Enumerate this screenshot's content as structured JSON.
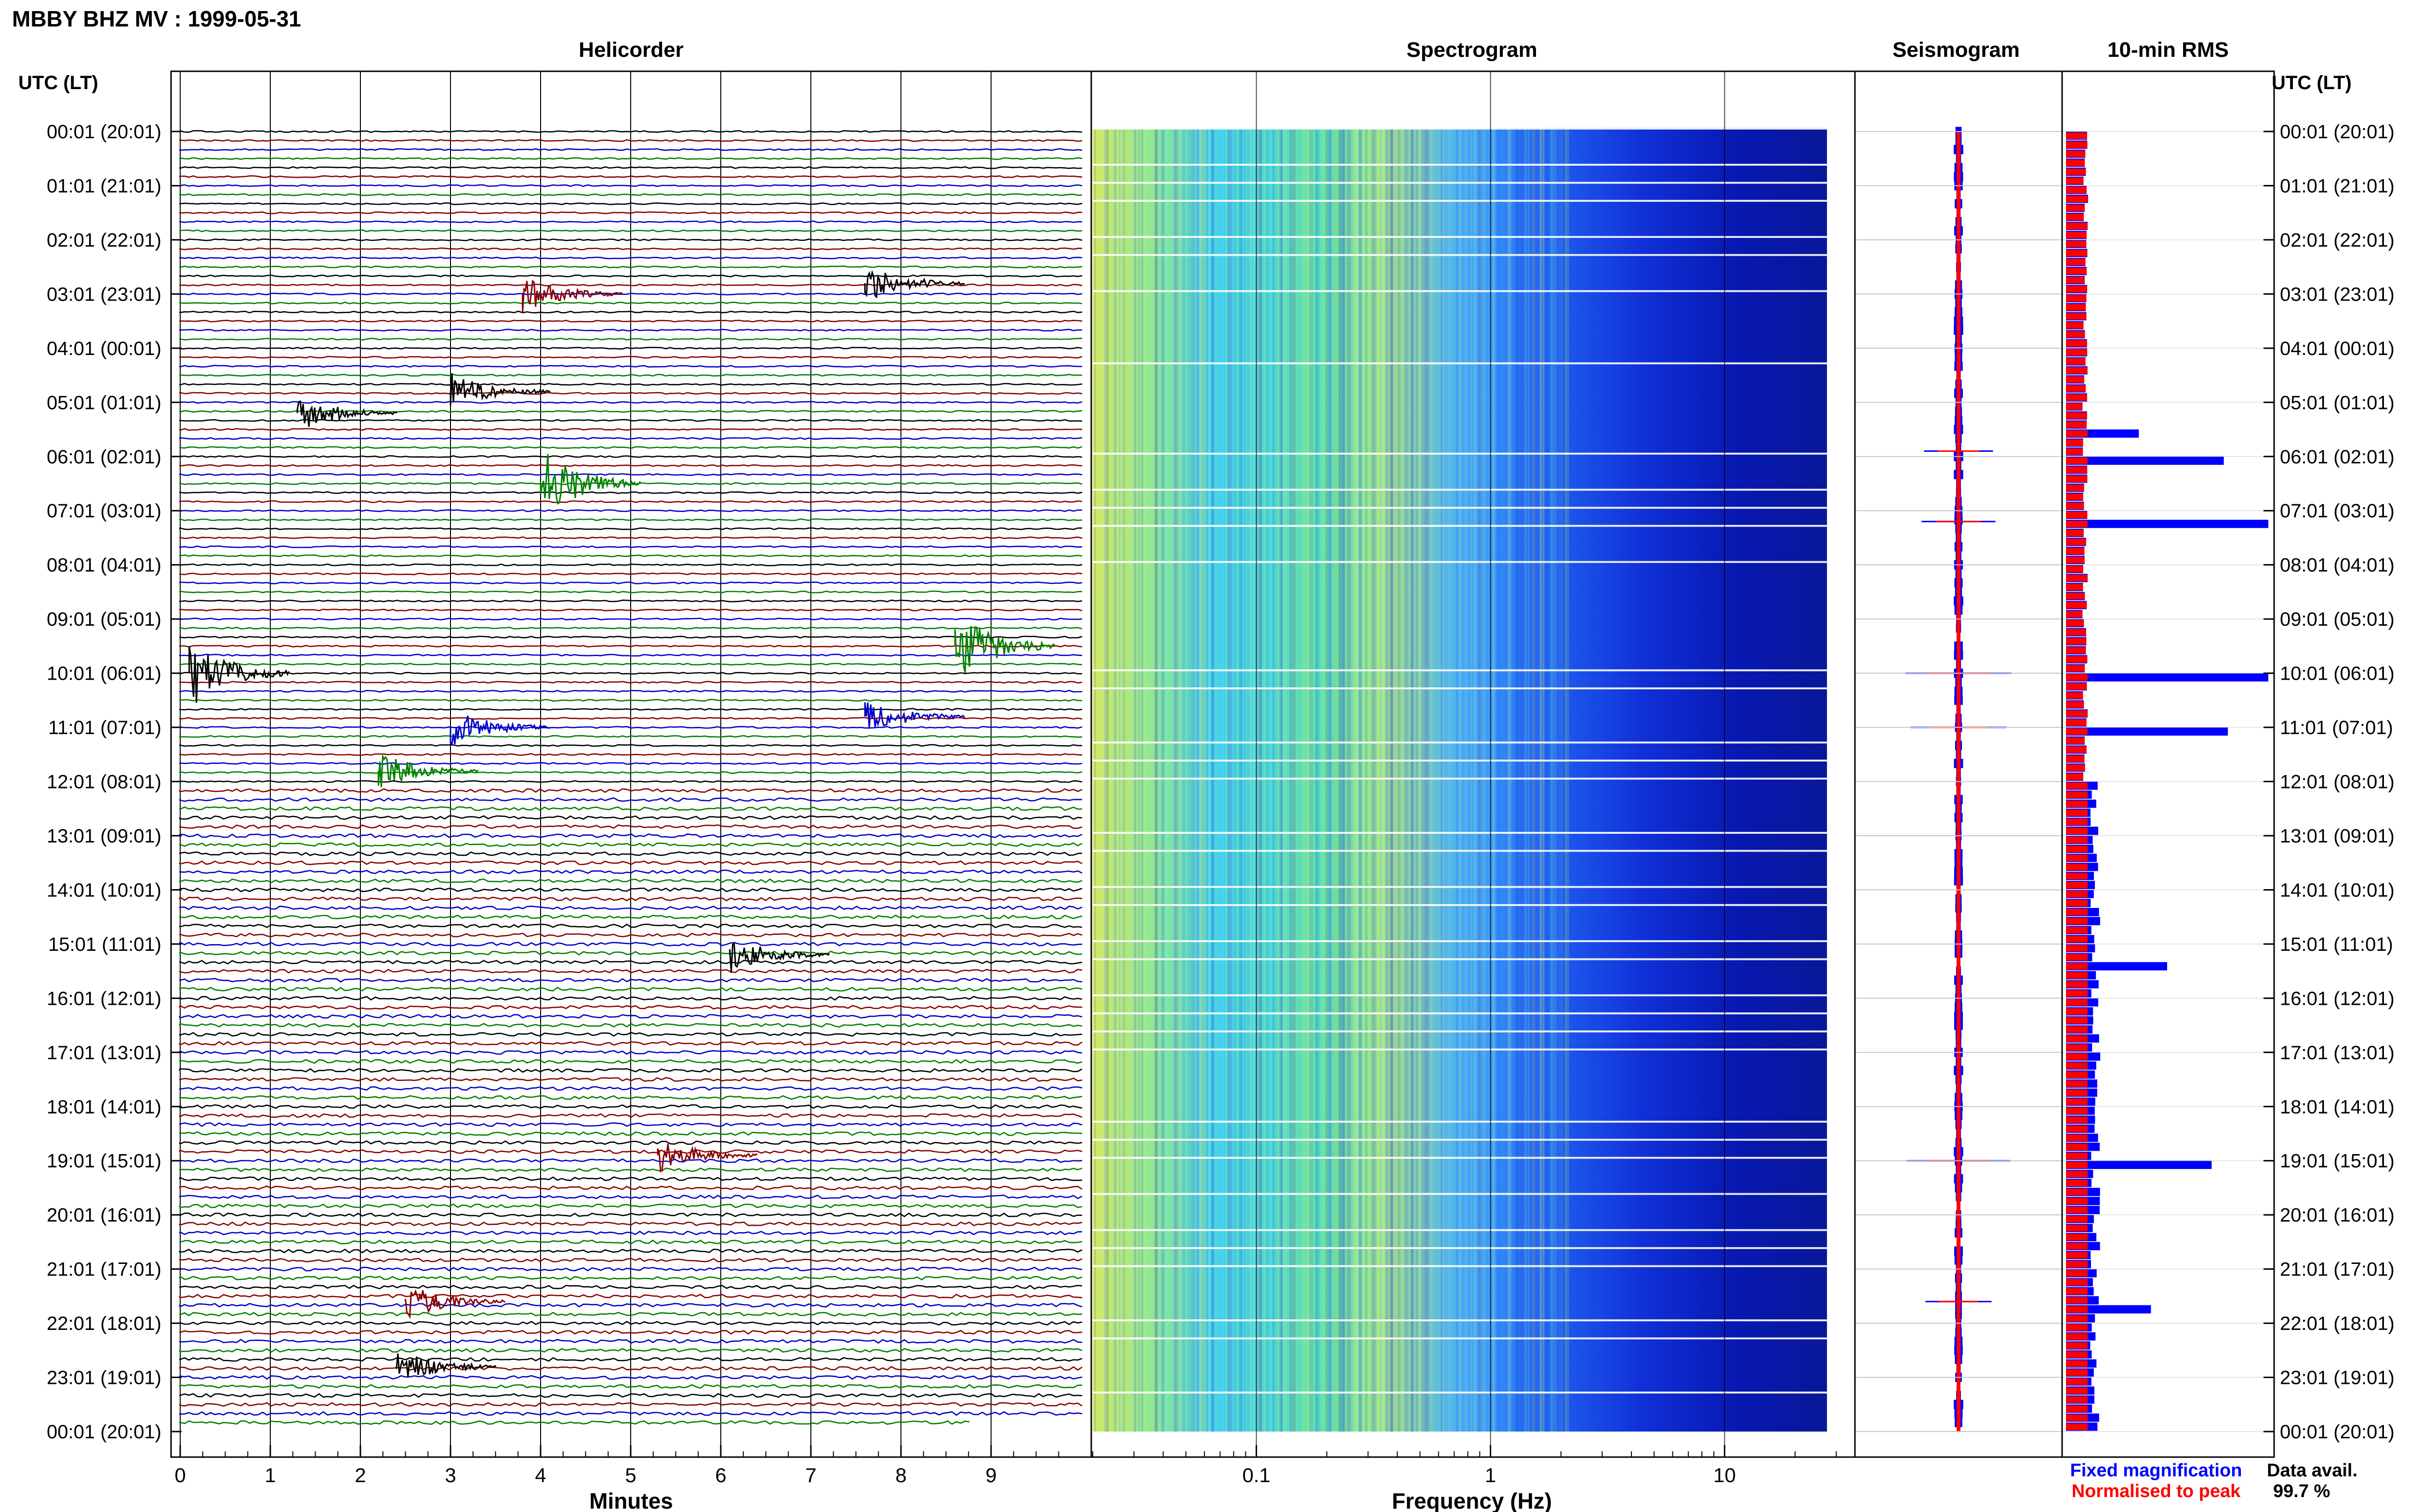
{
  "header": {
    "station_title": "MBBY BHZ MV : 1999-05-31",
    "left_axis_label": "UTC (LT)",
    "right_axis_label": "UTC (LT)",
    "data_avail_label": "Data avail.",
    "data_avail_value": "99.7 %"
  },
  "panels": {
    "helicorder_title": "Helicorder",
    "spectrogram_title": "Spectrogram",
    "seismogram_title": "Seismogram",
    "rms_title": "10-min RMS"
  },
  "legend": {
    "fixed_label": "Fixed magnification",
    "normalised_label": "Normalised to peak",
    "fixed_color": "#0000ff",
    "normalised_color": "#ff0000"
  },
  "chart_data": [
    {
      "type": "line",
      "name": "helicorder",
      "title": "Helicorder",
      "xlabel": "Minutes",
      "xlim": [
        0,
        10
      ],
      "x_ticks": [
        "0",
        "1",
        "2",
        "3",
        "4",
        "5",
        "6",
        "7",
        "8",
        "9"
      ],
      "y_tick_labels": [
        "00:01 (20:01)",
        "01:01 (21:01)",
        "02:01 (22:01)",
        "03:01 (23:01)",
        "04:01 (00:01)",
        "05:01 (01:01)",
        "06:01 (02:01)",
        "07:01 (03:01)",
        "08:01 (04:01)",
        "09:01 (05:01)",
        "10:01 (06:01)",
        "11:01 (07:01)",
        "12:01 (08:01)",
        "13:01 (09:01)",
        "14:01 (10:01)",
        "15:01 (11:01)",
        "16:01 (12:01)",
        "17:01 (13:01)",
        "18:01 (14:01)",
        "19:01 (15:01)",
        "20:01 (16:01)",
        "21:01 (17:01)",
        "22:01 (18:01)",
        "23:01 (19:01)",
        "00:01 (20:01)"
      ],
      "trace_colors": [
        "#000000",
        "#8b0000",
        "#0000cc",
        "#008000"
      ],
      "rows_per_hour": 6,
      "events": [
        {
          "hour": 5.2,
          "minute": 1.3,
          "color": "#000000"
        },
        {
          "hour": 4.8,
          "minute": 3.0,
          "color": "#000000"
        },
        {
          "hour": 6.5,
          "minute": 4.0,
          "color": "#008000"
        },
        {
          "hour": 9.5,
          "minute": 8.6,
          "color": "#008000"
        },
        {
          "hour": 10.0,
          "minute": 0.1,
          "color": "#000000"
        },
        {
          "hour": 11.0,
          "minute": 3.0,
          "color": "#0000cc"
        },
        {
          "hour": 10.8,
          "minute": 7.6,
          "color": "#0000cc"
        },
        {
          "hour": 11.8,
          "minute": 2.2,
          "color": "#008000"
        },
        {
          "hour": 15.2,
          "minute": 6.1,
          "color": "#000000"
        },
        {
          "hour": 18.9,
          "minute": 5.3,
          "color": "#8b0000"
        },
        {
          "hour": 2.8,
          "minute": 7.6,
          "color": "#000000"
        },
        {
          "hour": 3.0,
          "minute": 3.8,
          "color": "#8b0000"
        },
        {
          "hour": 21.6,
          "minute": 2.5,
          "color": "#8b0000"
        },
        {
          "hour": 22.8,
          "minute": 2.4,
          "color": "#000000"
        }
      ]
    },
    {
      "type": "heatmap",
      "name": "spectrogram",
      "title": "Spectrogram",
      "xlabel": "Frequency (Hz)",
      "x_scale": "log",
      "xlim": [
        0.02,
        40
      ],
      "x_ticks": [
        "0.1",
        "1",
        "10"
      ],
      "colormap": [
        "#000080",
        "#0000ff",
        "#0080ff",
        "#00d0ff",
        "#80ff80",
        "#ffff00"
      ]
    },
    {
      "type": "line",
      "name": "seismogram",
      "title": "Seismogram",
      "series": [
        {
          "name": "Fixed magnification",
          "color": "#0000ff"
        },
        {
          "name": "Normalised to peak",
          "color": "#ff0000"
        }
      ],
      "spikes_hours": [
        5.9,
        7.2,
        10.0,
        11.0,
        19.0,
        21.6
      ]
    },
    {
      "type": "bar",
      "name": "rms",
      "title": "10-min RMS",
      "orientation": "horizontal",
      "hours": 24,
      "bins_per_hour": 6,
      "series": [
        {
          "name": "Fixed magnification",
          "color": "#0000ff"
        },
        {
          "name": "Normalised to peak",
          "color": "#ff0000"
        }
      ],
      "peaks": [
        {
          "hour": 5.5,
          "value": 0.36
        },
        {
          "hour": 6.0,
          "value": 0.78
        },
        {
          "hour": 7.2,
          "value": 1.0
        },
        {
          "hour": 10.0,
          "value": 1.0
        },
        {
          "hour": 11.0,
          "value": 0.8
        },
        {
          "hour": 15.3,
          "value": 0.5
        },
        {
          "hour": 19.0,
          "value": 0.72
        },
        {
          "hour": 21.6,
          "value": 0.42
        }
      ]
    }
  ]
}
